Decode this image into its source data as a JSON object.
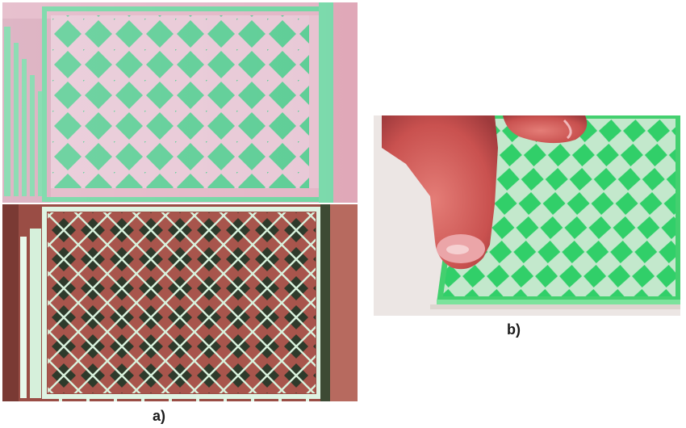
{
  "figure": {
    "caption_a": "a)",
    "caption_b": "b)"
  },
  "photos": {
    "a_top": {
      "description_colors": {
        "background": "#e8c4d2",
        "pattern": "#5ed39a",
        "border": "#69d49f"
      }
    },
    "a_bottom": {
      "description_colors": {
        "background": "#a8574e",
        "pattern": "#2f3a2c",
        "border": "#d8f3e0"
      }
    },
    "b": {
      "description_colors": {
        "background": "#c9ebd2",
        "pattern": "#33d06a",
        "finger": "#d46a66"
      }
    }
  }
}
